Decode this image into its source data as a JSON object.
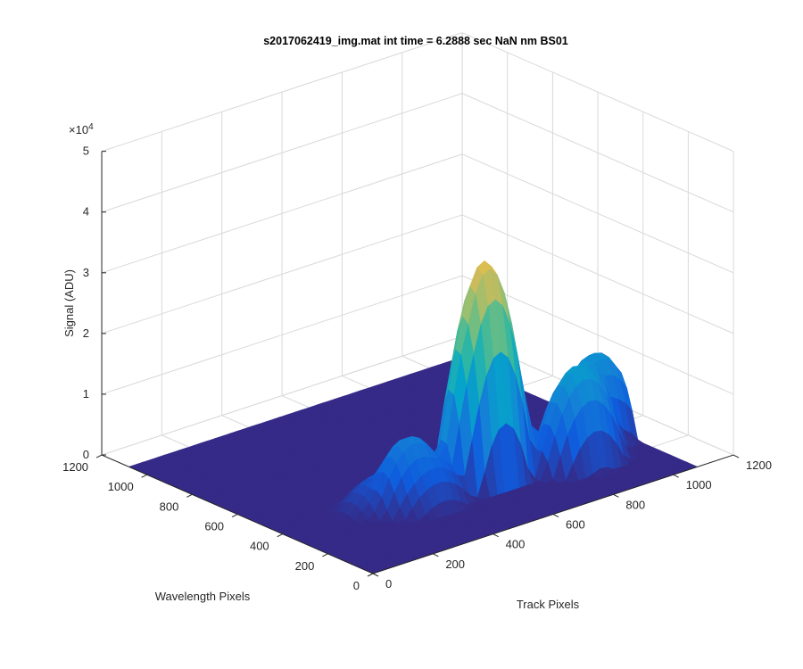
{
  "chart_data": {
    "type": "surface",
    "title": "s2017062419_img.mat int time = 6.2888 sec  NaN nm BS01",
    "xlabel": "Track Pixels",
    "ylabel": "Wavelength Pixels",
    "zlabel": "Signal (ADU)",
    "z_exponent_label": "×10",
    "z_exponent_power": "4",
    "xlim": [
      0,
      1200
    ],
    "ylim": [
      0,
      1200
    ],
    "zlim": [
      0,
      50000
    ],
    "x_ticks": [
      "0",
      "200",
      "400",
      "600",
      "800",
      "1000",
      "1200"
    ],
    "y_ticks": [
      "0",
      "200",
      "400",
      "600",
      "800",
      "1000",
      "1200"
    ],
    "z_ticks": [
      "0",
      "1",
      "2",
      "3",
      "4",
      "5"
    ],
    "grid": true,
    "colormap": "parula",
    "colors": [
      "#352a87",
      "#0f5cdd",
      "#1481d6",
      "#06a4ca",
      "#2eb7a4",
      "#87bf77",
      "#d1bb59",
      "#fec832",
      "#f9fb0e"
    ],
    "peaks": [
      {
        "x": 620,
        "y": 330,
        "height": 36000
      },
      {
        "x": 1010,
        "y": 360,
        "height": 14000
      },
      {
        "x": 870,
        "y": 250,
        "height": 16000
      },
      {
        "x": 400,
        "y": 310,
        "height": 8000
      },
      {
        "x": 330,
        "y": 380,
        "height": 5000
      }
    ]
  }
}
